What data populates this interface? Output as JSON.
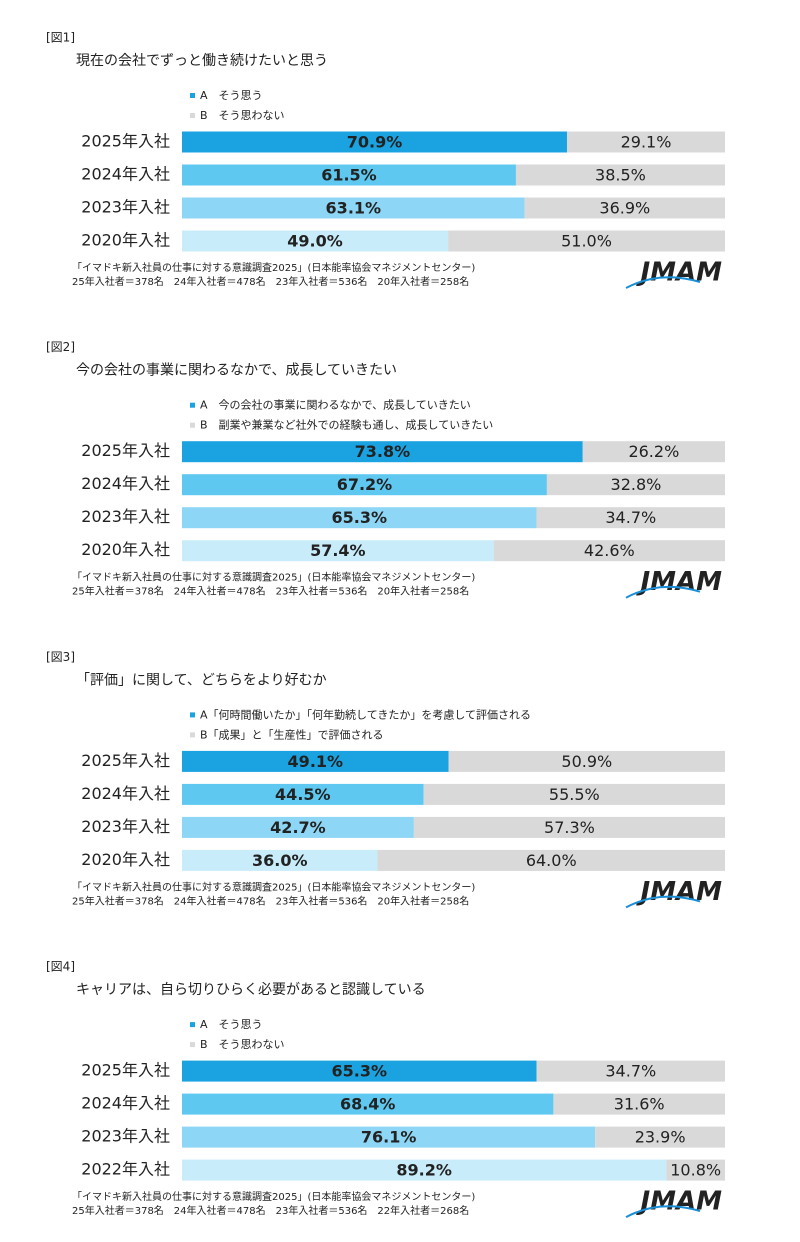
{
  "chart_data": [
    {
      "type": "bar",
      "stacked": true,
      "orientation": "horizontal",
      "figure_label": "[図1]",
      "title": "現在の会社でずっと働き続けたいと思う",
      "categories": [
        "2025年入社",
        "2024年入社",
        "2023年入社",
        "2020年入社"
      ],
      "series": [
        {
          "name": "A　そう思う",
          "color": "#1aa3e0",
          "colors": [
            "#1aa3e0",
            "#5ec8f0",
            "#8dd6f5",
            "#c8ecfa"
          ],
          "values": [
            70.9,
            61.5,
            63.1,
            49.0
          ],
          "value_labels": [
            "70.9%",
            "61.5%",
            "63.1%",
            "49.0%"
          ]
        },
        {
          "name": "B　そう思わない",
          "color": "#d9d9d9",
          "values": [
            29.1,
            38.5,
            36.9,
            51.0
          ],
          "value_labels": [
            "29.1%",
            "38.5%",
            "36.9%",
            "51.0%"
          ]
        }
      ],
      "xlim": [
        0,
        100
      ],
      "source": "「イマドキ新入社員の仕事に対する意識調査2025」(日本能率協会マネジメントセンター)",
      "note": "25年入社者＝378名　24年入社者＝478名　23年入社者＝536名　20年入社者＝258名",
      "logo": "JMAM"
    },
    {
      "type": "bar",
      "stacked": true,
      "orientation": "horizontal",
      "figure_label": "[図2]",
      "title": "今の会社の事業に関わるなかで、成長していきたい",
      "categories": [
        "2025年入社",
        "2024年入社",
        "2023年入社",
        "2020年入社"
      ],
      "series": [
        {
          "name": "A　今の会社の事業に関わるなかで、成長していきたい",
          "color": "#1aa3e0",
          "colors": [
            "#1aa3e0",
            "#5ec8f0",
            "#8dd6f5",
            "#c8ecfa"
          ],
          "values": [
            73.8,
            67.2,
            65.3,
            57.4
          ],
          "value_labels": [
            "73.8%",
            "67.2%",
            "65.3%",
            "57.4%"
          ]
        },
        {
          "name": "B　副業や兼業など社外での経験も通し、成長していきたい",
          "color": "#d9d9d9",
          "values": [
            26.2,
            32.8,
            34.7,
            42.6
          ],
          "value_labels": [
            "26.2%",
            "32.8%",
            "34.7%",
            "42.6%"
          ]
        }
      ],
      "xlim": [
        0,
        100
      ],
      "source": "「イマドキ新入社員の仕事に対する意識調査2025」(日本能率協会マネジメントセンター)",
      "note": "25年入社者＝378名　24年入社者＝478名　23年入社者＝536名　20年入社者＝258名",
      "logo": "JMAM"
    },
    {
      "type": "bar",
      "stacked": true,
      "orientation": "horizontal",
      "figure_label": "[図3]",
      "title": "「評価」に関して、どちらをより好むか",
      "categories": [
        "2025年入社",
        "2024年入社",
        "2023年入社",
        "2020年入社"
      ],
      "series": [
        {
          "name": "A「何時間働いたか」「何年勤続してきたか」を考慮して評価される",
          "color": "#1aa3e0",
          "colors": [
            "#1aa3e0",
            "#5ec8f0",
            "#8dd6f5",
            "#c8ecfa"
          ],
          "values": [
            49.1,
            44.5,
            42.7,
            36.0
          ],
          "value_labels": [
            "49.1%",
            "44.5%",
            "42.7%",
            "36.0%"
          ]
        },
        {
          "name": "B「成果」と「生産性」で評価される",
          "color": "#d9d9d9",
          "values": [
            50.9,
            55.5,
            57.3,
            64.0
          ],
          "value_labels": [
            "50.9%",
            "55.5%",
            "57.3%",
            "64.0%"
          ]
        }
      ],
      "xlim": [
        0,
        100
      ],
      "source": "「イマドキ新入社員の仕事に対する意識調査2025」(日本能率協会マネジメントセンター)",
      "note": "25年入社者＝378名　24年入社者＝478名　23年入社者＝536名　20年入社者＝258名",
      "logo": "JMAM"
    },
    {
      "type": "bar",
      "stacked": true,
      "orientation": "horizontal",
      "figure_label": "[図4]",
      "title": "キャリアは、自ら切りひらく必要があると認識している",
      "categories": [
        "2025年入社",
        "2024年入社",
        "2023年入社",
        "2022年入社"
      ],
      "series": [
        {
          "name": "A　そう思う",
          "color": "#1aa3e0",
          "colors": [
            "#1aa3e0",
            "#5ec8f0",
            "#8dd6f5",
            "#c8ecfa"
          ],
          "values": [
            65.3,
            68.4,
            76.1,
            89.2
          ],
          "value_labels": [
            "65.3%",
            "68.4%",
            "76.1%",
            "89.2%"
          ]
        },
        {
          "name": "B　そう思わない",
          "color": "#d9d9d9",
          "values": [
            34.7,
            31.6,
            23.9,
            10.8
          ],
          "value_labels": [
            "34.7%",
            "31.6%",
            "23.9%",
            "10.8%"
          ]
        }
      ],
      "xlim": [
        0,
        100
      ],
      "source": "「イマドキ新入社員の仕事に対する意識調査2025」(日本能率協会マネジメントセンター)",
      "note": "25年入社者＝378名　24年入社者＝478名　23年入社者＝536名　22年入社者＝268名",
      "logo": "JMAM"
    }
  ]
}
